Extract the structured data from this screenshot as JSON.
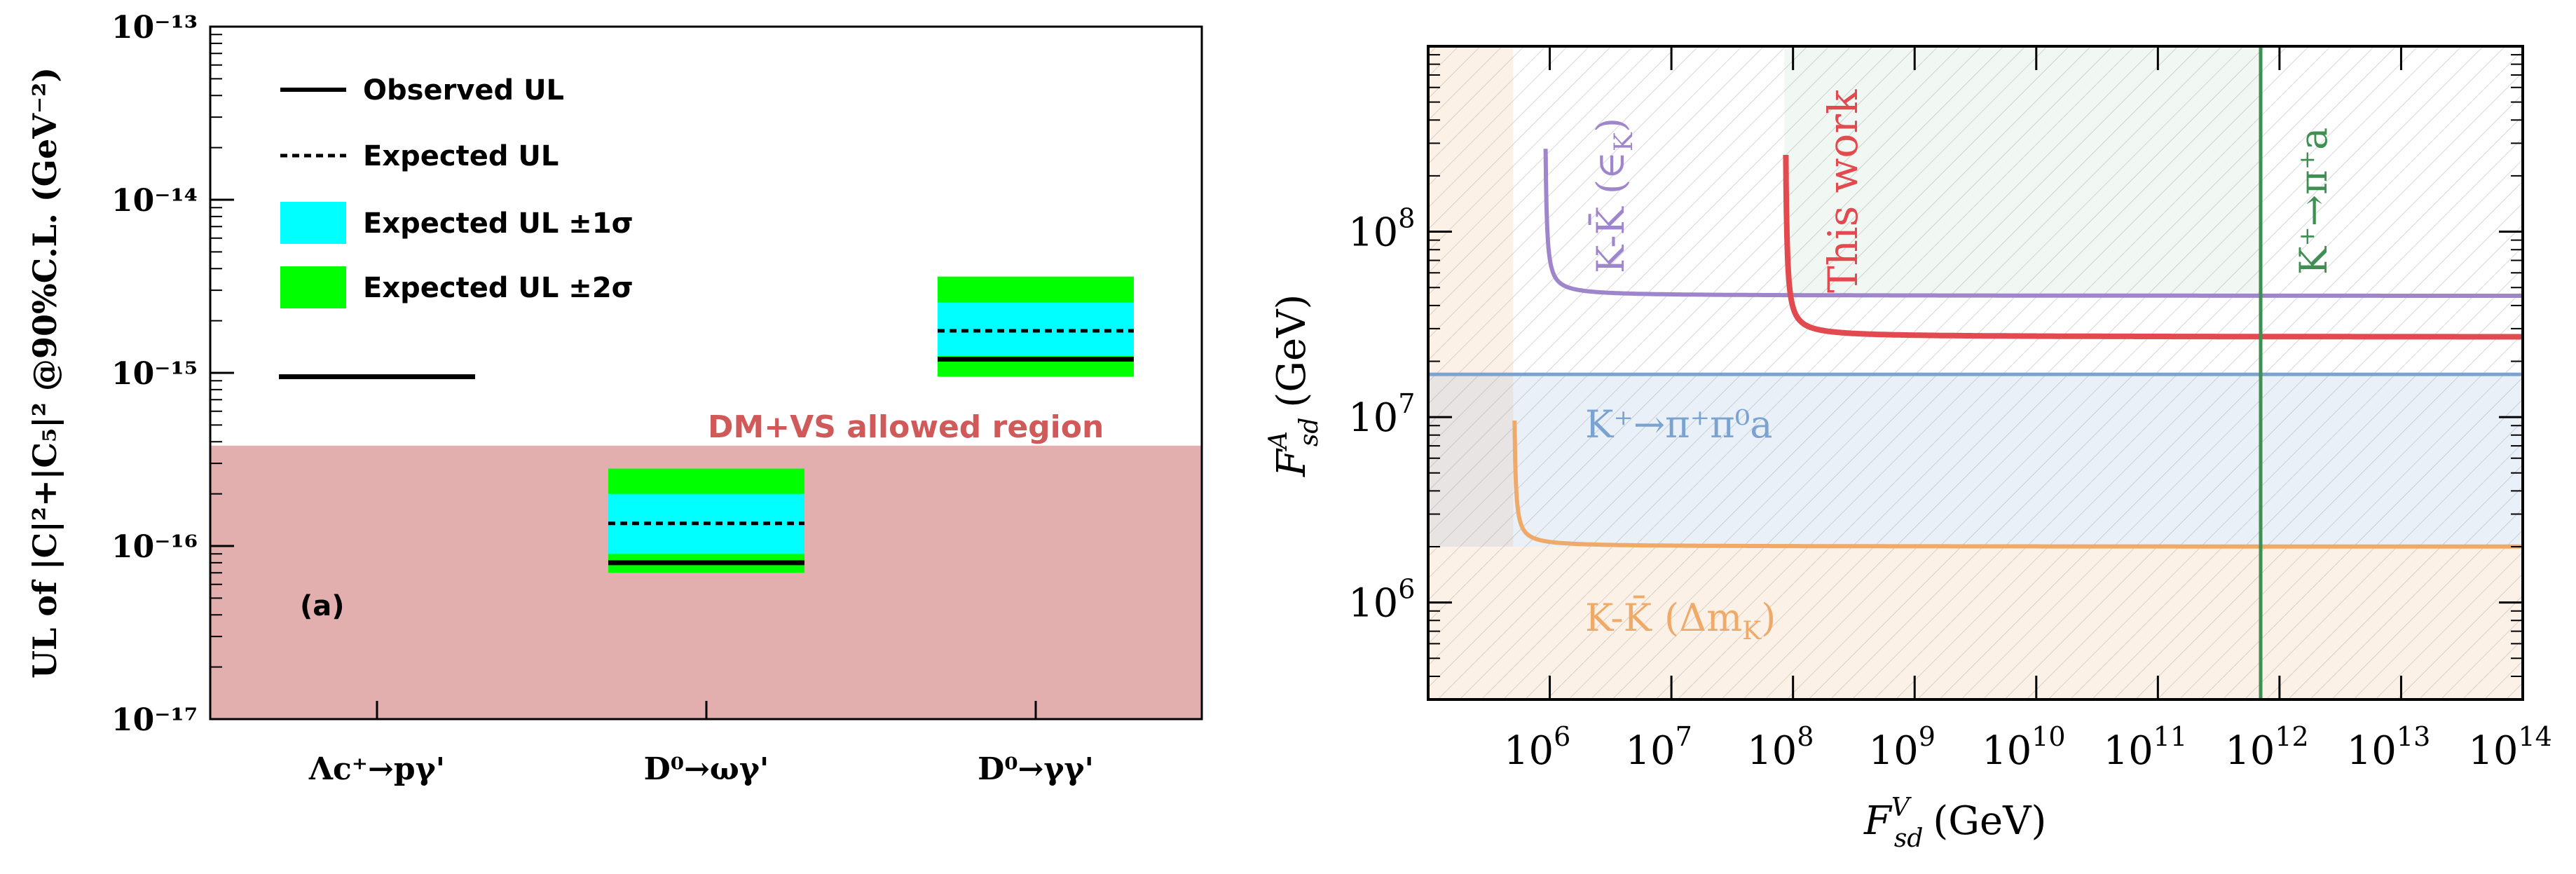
{
  "chart_data": [
    {
      "type": "interval",
      "panel_label": "(a)",
      "ylabel": "UL of |C|²+|C₅|² @90%C.L. (GeV⁻²)",
      "yscale": "log",
      "ylim": [
        1e-17,
        1e-13
      ],
      "ytick_labels": [
        "10⁻¹³",
        "10⁻¹⁴",
        "10⁻¹⁵",
        "10⁻¹⁶",
        "10⁻¹⁷"
      ],
      "categories": [
        "Λc⁺→pγ'",
        "D⁰→ωγ'",
        "D⁰→γγ'"
      ],
      "legend": {
        "placement": "top-left",
        "entries": [
          "Observed UL",
          "Expected UL",
          "Expected UL ±1σ",
          "Expected UL ±2σ"
        ]
      },
      "series": [
        {
          "category": "Λc⁺→pγ'",
          "observed": 9.5e-16
        },
        {
          "category": "D⁰→ωγ'",
          "observed": 8e-17,
          "expected": 1.35e-16,
          "band_1sigma": [
            9e-17,
            2e-16
          ],
          "band_2sigma": [
            7e-17,
            2.8e-16
          ]
        },
        {
          "category": "D⁰→γγ'",
          "observed": 1.2e-15,
          "expected": 1.75e-15,
          "band_1sigma": [
            1.25e-15,
            2.55e-15
          ],
          "band_2sigma": [
            9.5e-16,
            3.6e-15
          ]
        }
      ],
      "region": {
        "label": "DM+VS allowed region",
        "ymax": 3.8e-16
      },
      "colors": {
        "sigma1": "#00ffff",
        "sigma2": "#00ff00",
        "region": "#e3aeae",
        "region_label": "#d05a5a"
      }
    },
    {
      "type": "line",
      "xscale": "log",
      "yscale": "log",
      "xlabel_main": "F",
      "xlabel_sup": "V",
      "xlabel_sub": "sd",
      "xlabel_units": "(GeV)",
      "ylabel_main": "F",
      "ylabel_sup": "A",
      "ylabel_sub": "sd",
      "ylabel_units": "(GeV)",
      "xlim": [
        100000.0,
        100000000000000.0
      ],
      "ylim": [
        300000.0,
        1000000000.0
      ],
      "xtick_exponents": [
        "6",
        "7",
        "8",
        "9",
        "10",
        "11",
        "12",
        "13",
        "14"
      ],
      "ytick_exponents": [
        "6",
        "7",
        "8"
      ],
      "tick_base": "10",
      "series": [
        {
          "name": "K-K̄ (ε_K)",
          "color": "#9f86cc",
          "vertical_asymptote_x": 900000.0,
          "horizontal_level_y": 45000000.0
        },
        {
          "name": "This work",
          "color": "#e24a4f",
          "vertical_asymptote_x": 85000000.0,
          "horizontal_level_y": 27000000.0
        },
        {
          "name": "K⁺→π⁺a",
          "color": "#3f8f53",
          "vertical_line_x": 700000000000.0
        },
        {
          "name": "K⁺→π⁺π⁰a",
          "color": "#7ba3cf",
          "horizontal_line_y": 17000000.0
        },
        {
          "name": "K-K̄ (Δm_K)",
          "color": "#efaa6a",
          "vertical_asymptote_x": 500000.0,
          "horizontal_level_y": 2000000.0
        }
      ],
      "labels": {
        "epsK_main": "K-K̄",
        "epsK_paren": "(∈",
        "epsK_sub": "K",
        "epsK_close": ")",
        "this_work": "This work",
        "kpa": "K⁺→π⁺a",
        "kppa": "K⁺→π⁺π⁰a",
        "dmk_main": "K-K̄",
        "dmk_paren": "(Δm",
        "dmk_sub": "K",
        "dmk_close": ")"
      }
    }
  ]
}
